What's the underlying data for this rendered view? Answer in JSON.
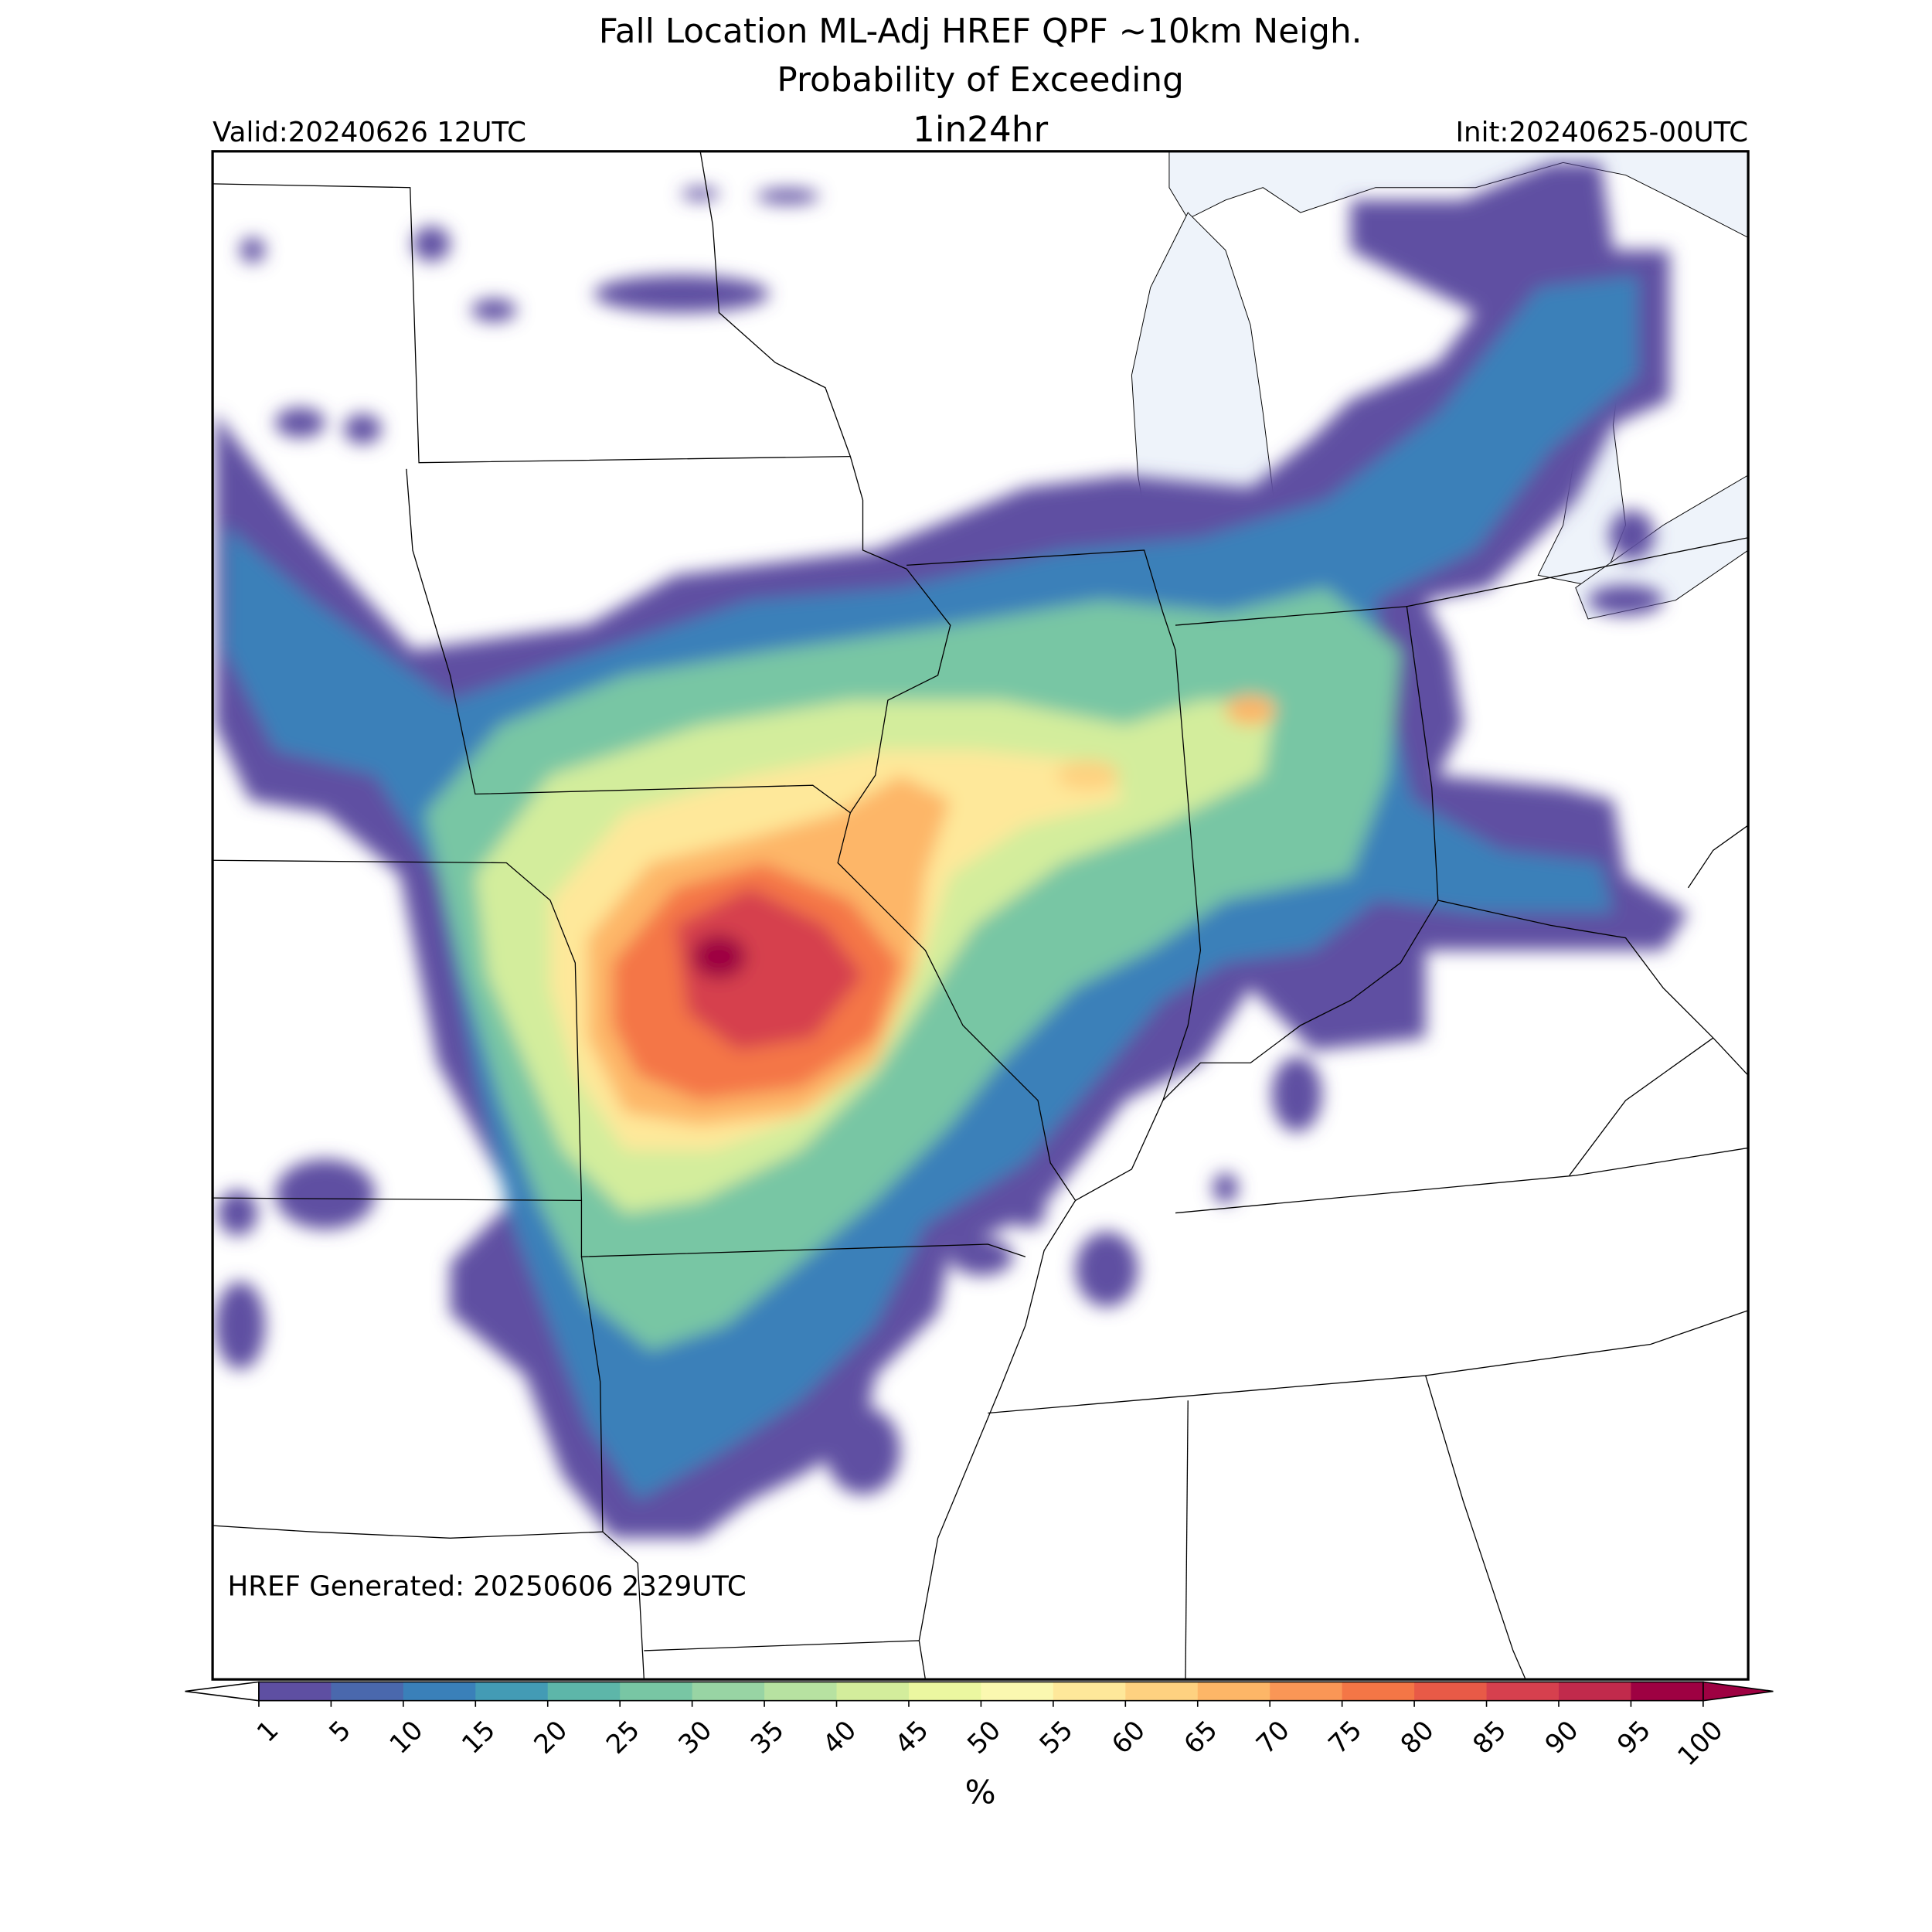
{
  "header": {
    "title_line1": "Fall Location ML-Adj HREF QPF ~10km Neigh.",
    "title_line2": "Probability of Exceeding",
    "valid": "Valid:20240626 12UTC",
    "threshold": "1in24hr",
    "init": "Init:20240625-00UTC"
  },
  "footer": {
    "generated": "HREF Generated: 20250606 2329UTC"
  },
  "colorbar": {
    "label": "%",
    "ticks": [
      1,
      5,
      10,
      15,
      20,
      25,
      30,
      35,
      40,
      45,
      50,
      55,
      60,
      65,
      70,
      75,
      80,
      85,
      90,
      95,
      100
    ],
    "colors": [
      "#5e4fa2",
      "#4a68ad",
      "#3a80b9",
      "#439bb5",
      "#5db6a9",
      "#78c6a4",
      "#98d4a4",
      "#b7e2a1",
      "#d3ed9c",
      "#ebf7a0",
      "#fbf8b0",
      "#fee89a",
      "#fed180",
      "#fdb667",
      "#fa9656",
      "#f47646",
      "#e85a47",
      "#d6404e",
      "#c12a4c",
      "#9e0142"
    ],
    "under_color": "#ffffff",
    "over_color": "#9e0142"
  }
}
